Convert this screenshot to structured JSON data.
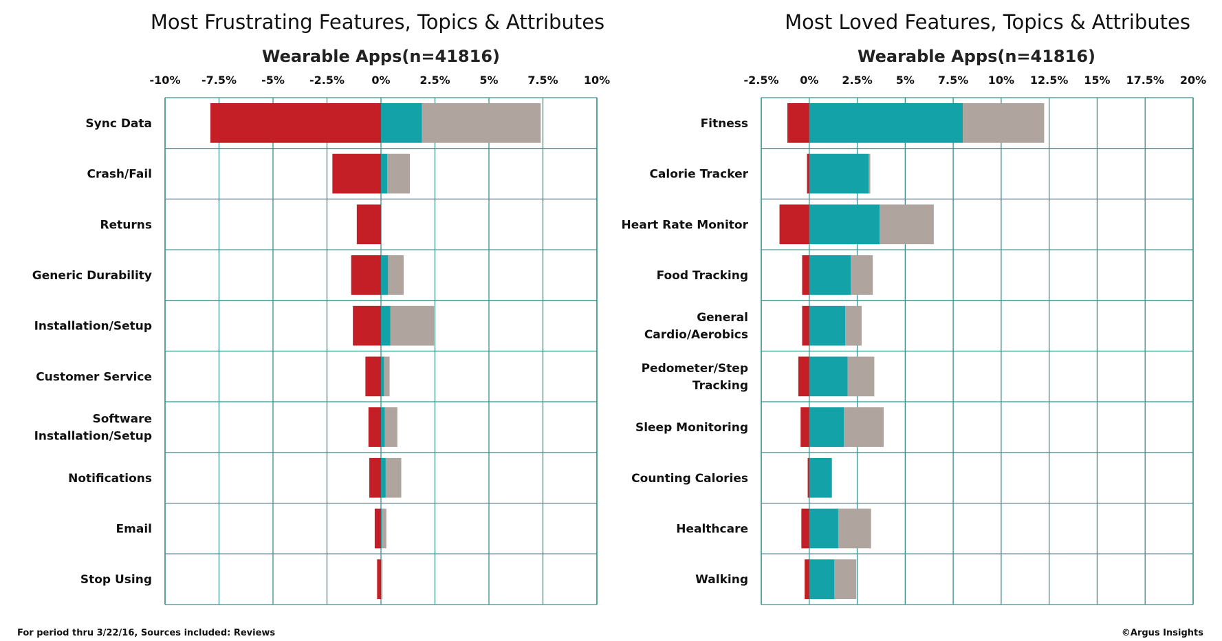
{
  "colors": {
    "negative": "#c41f26",
    "positive": "#13a2a8",
    "neutral": "#b0a49f",
    "grid": "#3a8f8a"
  },
  "footer": {
    "left": "For period thru 3/22/16, Sources included: Reviews",
    "right": "©Argus Insights"
  },
  "chart_data": [
    {
      "type": "bar",
      "orientation": "horizontal-stacked-diverging",
      "title": "Most Frustrating Features, Topics & Attributes",
      "subtitle": "Wearable Apps(n=41816)",
      "xlim": [
        -10,
        10
      ],
      "ticks": [
        "-10%",
        "-7.5%",
        "-5%",
        "-2.5%",
        "0%",
        "2.5%",
        "5%",
        "7.5%",
        "10%"
      ],
      "grid": true,
      "categories": [
        [
          "Sync Data"
        ],
        [
          "Crash/Fail"
        ],
        [
          "Returns"
        ],
        [
          "Generic Durability"
        ],
        [
          "Installation/Setup"
        ],
        [
          "Customer Service"
        ],
        [
          "Software",
          "Installation/Setup"
        ],
        [
          "Notifications"
        ],
        [
          "Email"
        ],
        [
          "Stop Using"
        ]
      ],
      "series": [
        {
          "role": "negative",
          "values": [
            -7.9,
            -2.25,
            -1.12,
            -1.38,
            -1.3,
            -0.72,
            -0.58,
            -0.54,
            -0.29,
            -0.18
          ]
        },
        {
          "role": "positive",
          "values": [
            1.9,
            0.29,
            0,
            0.33,
            0.43,
            0.14,
            0.18,
            0.22,
            0.04,
            0
          ]
        },
        {
          "role": "neutral",
          "values": [
            5.5,
            1.05,
            0,
            0.72,
            2.03,
            0.26,
            0.58,
            0.72,
            0.21,
            0.07
          ]
        }
      ]
    },
    {
      "type": "bar",
      "orientation": "horizontal-stacked-diverging",
      "title": "Most Loved Features, Topics & Attributes",
      "subtitle": "Wearable Apps(n=41816)",
      "xlim": [
        -2.5,
        20
      ],
      "ticks": [
        "-2.5%",
        "0%",
        "2.5%",
        "5%",
        "7.5%",
        "10%",
        "12.5%",
        "15%",
        "17.5%",
        "20%"
      ],
      "grid": true,
      "categories": [
        [
          "Fitness"
        ],
        [
          "Calorie Tracker"
        ],
        [
          "Heart Rate Monitor"
        ],
        [
          "Food Tracking"
        ],
        [
          "General",
          "Cardio/Aerobics"
        ],
        [
          "Pedometer/Step",
          "Tracking"
        ],
        [
          "Sleep Monitoring"
        ],
        [
          "Counting Calories"
        ],
        [
          "Healthcare"
        ],
        [
          "Walking"
        ]
      ],
      "series": [
        {
          "role": "negative",
          "values": [
            -1.14,
            -0.12,
            -1.55,
            -0.37,
            -0.37,
            -0.57,
            -0.45,
            -0.08,
            -0.41,
            -0.24
          ]
        },
        {
          "role": "positive",
          "values": [
            8.0,
            3.1,
            3.67,
            2.16,
            1.88,
            2.0,
            1.8,
            1.18,
            1.51,
            1.31
          ]
        },
        {
          "role": "neutral",
          "values": [
            4.24,
            0.08,
            2.82,
            1.15,
            0.85,
            1.39,
            2.08,
            0,
            1.71,
            1.14
          ]
        }
      ]
    }
  ]
}
